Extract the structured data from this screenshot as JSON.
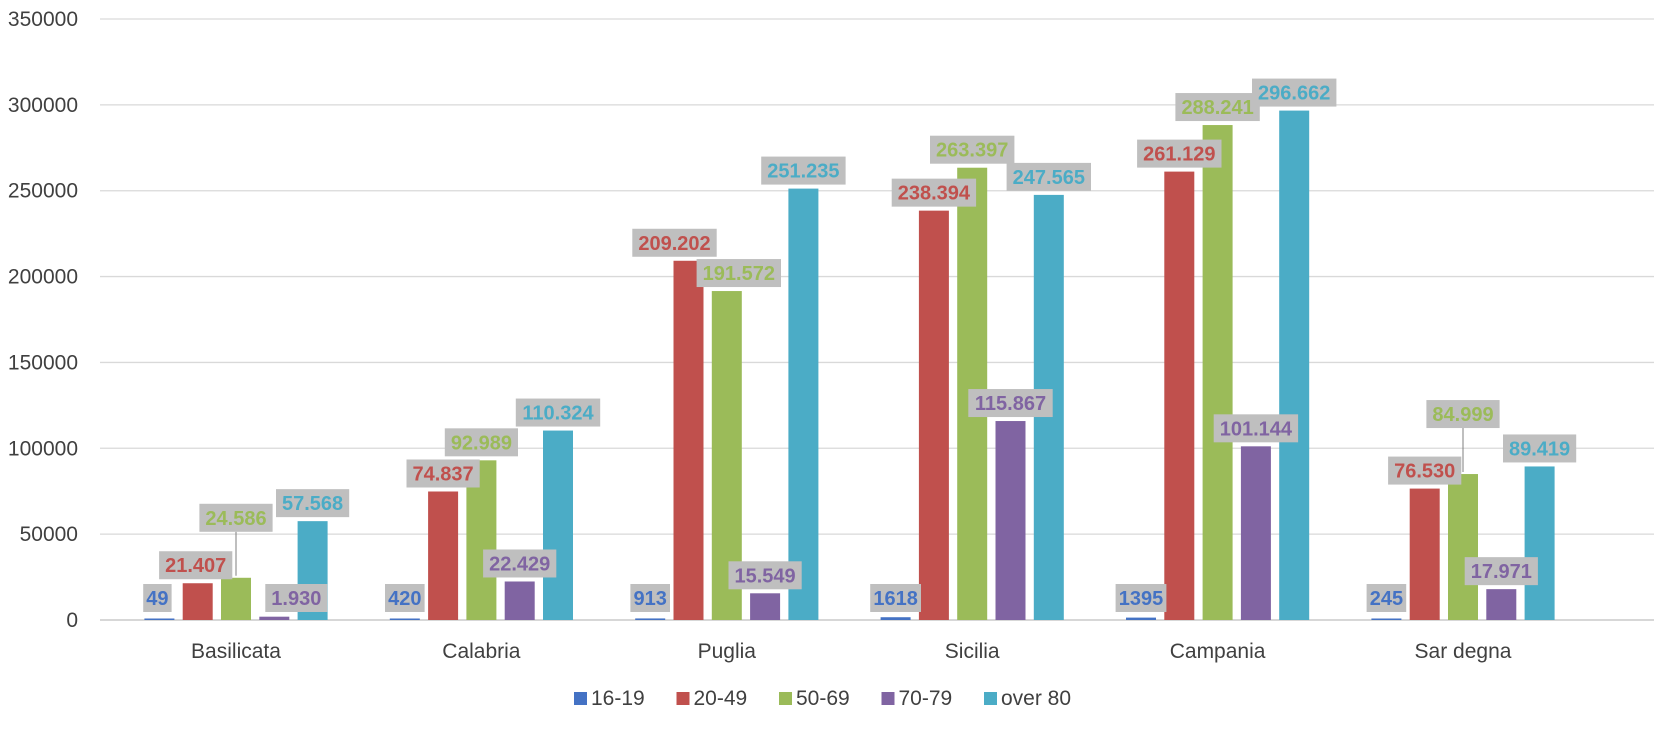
{
  "chart_data": {
    "type": "bar",
    "categories": [
      "Basilicata",
      "Calabria",
      "Puglia",
      "Sicilia",
      "Campania",
      "Sar degna"
    ],
    "ylim": [
      0,
      350000
    ],
    "yticks": [
      "0",
      "50000",
      "100000",
      "150000",
      "200000",
      "250000",
      "300000",
      "350000"
    ],
    "grid": true,
    "legend_position": "bottom",
    "series": [
      {
        "name": "16-19",
        "color": "#4472C4",
        "values": [
          49,
          420,
          913,
          1618,
          1395,
          245
        ],
        "labels": [
          "49",
          "420",
          "913",
          "1618",
          "1395",
          "245"
        ]
      },
      {
        "name": "20-49",
        "color": "#C0504D",
        "values": [
          21407,
          74837,
          209202,
          238394,
          261129,
          76530
        ],
        "labels": [
          "21.407",
          "74.837",
          "209.202",
          "238.394",
          "261.129",
          "76.530"
        ]
      },
      {
        "name": "50-69",
        "color": "#9BBB59",
        "values": [
          24586,
          92989,
          191572,
          263397,
          288241,
          84999
        ],
        "labels": [
          "24.586",
          "92.989",
          "191.572",
          "263.397",
          "288.241",
          "84.999"
        ]
      },
      {
        "name": "70-79",
        "color": "#8064A2",
        "values": [
          1930,
          22429,
          15549,
          115867,
          101144,
          17971
        ],
        "labels": [
          "1.930",
          "22.429",
          "15.549",
          "115.867",
          "101.144",
          "17.971"
        ]
      },
      {
        "name": "over 80",
        "color": "#4BACC6",
        "values": [
          57568,
          110324,
          251235,
          247565,
          296662,
          89419
        ],
        "labels": [
          "57.568",
          "110.324",
          "251.235",
          "247.565",
          "296.662",
          "89.419"
        ]
      }
    ],
    "label_background": "#BFBFBF"
  }
}
